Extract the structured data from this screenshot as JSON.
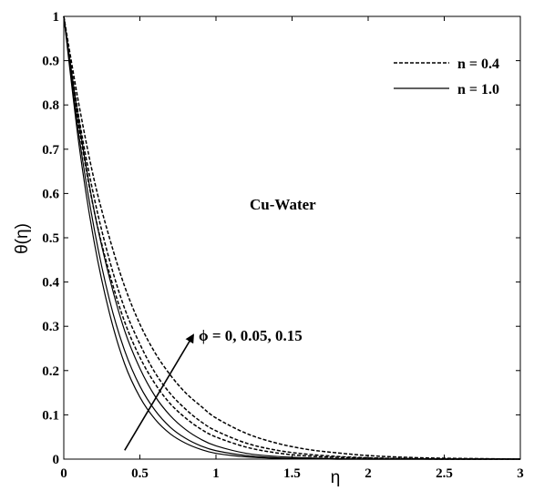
{
  "chart_data": {
    "type": "line",
    "xlabel": "η",
    "ylabel": "θ(η)",
    "xlim": [
      0,
      3
    ],
    "ylim": [
      0,
      1
    ],
    "xticks": [
      "0",
      "0.5",
      "1",
      "1.5",
      "2",
      "2.5",
      "3"
    ],
    "yticks": [
      "0",
      "0.1",
      "0.2",
      "0.3",
      "0.4",
      "0.5",
      "0.6",
      "0.7",
      "0.8",
      "0.9",
      "1"
    ],
    "grid": false,
    "legend_position": "top-right",
    "legend": [
      {
        "label": "n = 0.4",
        "style": "dashed"
      },
      {
        "label": "n = 1.0",
        "style": "solid"
      }
    ],
    "annotations": {
      "fluid": "Cu-Water",
      "phi": "ϕ = 0, 0.05, 0.15"
    },
    "x": [
      0,
      0.1,
      0.2,
      0.3,
      0.4,
      0.5,
      0.6,
      0.7,
      0.8,
      0.9,
      1.0,
      1.2,
      1.4,
      1.6,
      1.8,
      2.0,
      2.25,
      2.5,
      2.75,
      3.0
    ],
    "series": [
      {
        "style": "dashed",
        "values": [
          1.0,
          0.8,
          0.63,
          0.5,
          0.39,
          0.305,
          0.24,
          0.19,
          0.15,
          0.12,
          0.093,
          0.058,
          0.036,
          0.022,
          0.014,
          0.008,
          0.004,
          0.002,
          0.001,
          0.0
        ]
      },
      {
        "style": "dashed",
        "values": [
          1.0,
          0.77,
          0.59,
          0.45,
          0.34,
          0.26,
          0.195,
          0.148,
          0.113,
          0.085,
          0.064,
          0.036,
          0.02,
          0.011,
          0.006,
          0.003,
          0.001,
          0.0,
          0.0,
          0.0
        ]
      },
      {
        "style": "dashed",
        "values": [
          1.0,
          0.75,
          0.56,
          0.42,
          0.31,
          0.23,
          0.17,
          0.125,
          0.093,
          0.068,
          0.05,
          0.027,
          0.014,
          0.007,
          0.004,
          0.002,
          0.001,
          0.0,
          0.0,
          0.0
        ]
      },
      {
        "style": "solid",
        "values": [
          1.0,
          0.76,
          0.56,
          0.41,
          0.29,
          0.205,
          0.142,
          0.098,
          0.067,
          0.045,
          0.03,
          0.013,
          0.006,
          0.003,
          0.001,
          0.0,
          0.0,
          0.0,
          0.0,
          0.0
        ]
      },
      {
        "style": "solid",
        "values": [
          1.0,
          0.73,
          0.52,
          0.36,
          0.245,
          0.165,
          0.11,
          0.072,
          0.047,
          0.03,
          0.019,
          0.008,
          0.003,
          0.001,
          0.0,
          0.0,
          0.0,
          0.0,
          0.0,
          0.0
        ]
      },
      {
        "style": "solid",
        "values": [
          1.0,
          0.71,
          0.49,
          0.33,
          0.215,
          0.14,
          0.09,
          0.057,
          0.036,
          0.022,
          0.013,
          0.005,
          0.002,
          0.001,
          0.0,
          0.0,
          0.0,
          0.0,
          0.0,
          0.0
        ]
      }
    ],
    "arrow": {
      "from": [
        0.4,
        0.02
      ],
      "to": [
        0.85,
        0.28
      ]
    }
  }
}
